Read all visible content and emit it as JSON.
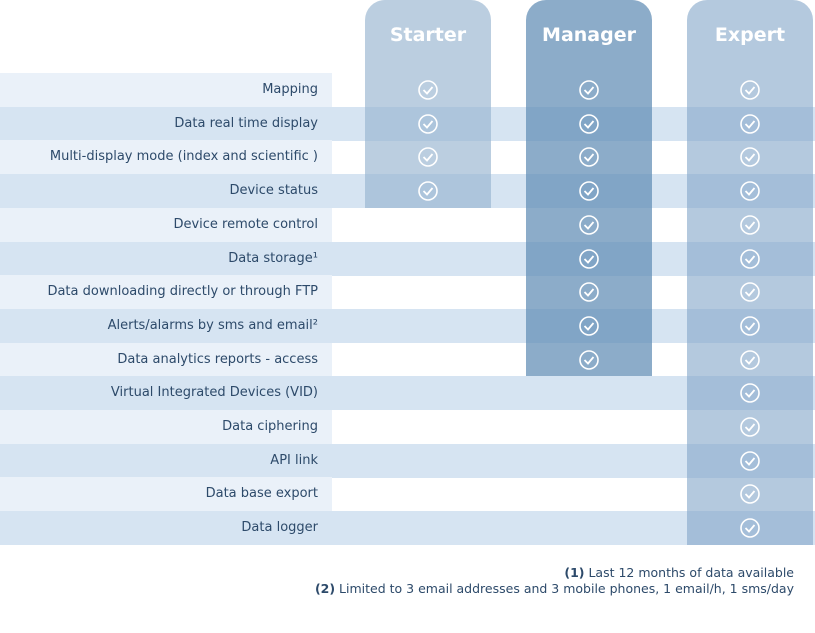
{
  "tiers": [
    "Starter",
    "Manager",
    "Expert"
  ],
  "features": [
    {
      "label": "Mapping",
      "tiers": [
        true,
        true,
        true
      ]
    },
    {
      "label": "Data real time display",
      "tiers": [
        true,
        true,
        true
      ]
    },
    {
      "label": "Multi-display mode (index and scientific )",
      "tiers": [
        true,
        true,
        true
      ]
    },
    {
      "label": "Device status",
      "tiers": [
        true,
        true,
        true
      ]
    },
    {
      "label": "Device remote control",
      "tiers": [
        false,
        true,
        true
      ]
    },
    {
      "label": "Data storage¹",
      "tiers": [
        false,
        true,
        true
      ]
    },
    {
      "label": "Data downloading directly or through FTP",
      "tiers": [
        false,
        true,
        true
      ]
    },
    {
      "label": "Alerts/alarms by sms and email²",
      "tiers": [
        false,
        true,
        true
      ]
    },
    {
      "label": "Data analytics reports - access",
      "tiers": [
        false,
        true,
        true
      ]
    },
    {
      "label": "Virtual Integrated Devices (VID)",
      "tiers": [
        false,
        false,
        true
      ]
    },
    {
      "label": "Data ciphering",
      "tiers": [
        false,
        false,
        true
      ]
    },
    {
      "label": "API link",
      "tiers": [
        false,
        false,
        true
      ]
    },
    {
      "label": "Data base export",
      "tiers": [
        false,
        false,
        true
      ]
    },
    {
      "label": "Data logger",
      "tiers": [
        false,
        false,
        true
      ]
    }
  ],
  "footnotes": [
    {
      "marker": "(1)",
      "text": "Last 12 months of data available"
    },
    {
      "marker": "(2)",
      "text": "Limited to 3 email addresses and 3 mobile phones, 1 email/h, 1 sms/day"
    }
  ]
}
